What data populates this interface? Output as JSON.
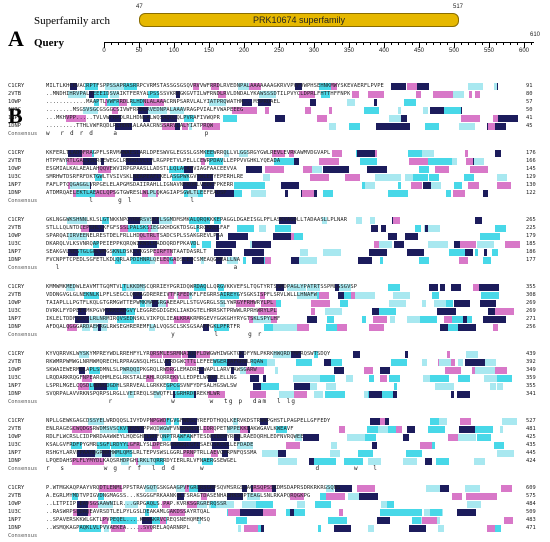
{
  "panel_a": {
    "letter": "A",
    "arch_label": "Superfamily arch",
    "query_label": "Query",
    "domain": {
      "name": "PRK10674 superfamily",
      "start": "47",
      "end": "517"
    },
    "ruler_end_label": "610",
    "ruler_ticks": [
      "0",
      "50",
      "100",
      "150",
      "200",
      "250",
      "300",
      "350",
      "400",
      "450",
      "500",
      "550",
      "600"
    ]
  },
  "panel_b": {
    "letter": "B",
    "consensus_label": "Consensus",
    "sequence_names": [
      "C1CRY",
      "2VTB",
      "1OWP",
      "1U3C",
      "1NP7",
      "1DNP"
    ],
    "colors": {
      "dark": "#1c1c5c",
      "cyan": "#48d8e8",
      "pink": "#d878c8",
      "light": "#a8e8f0"
    },
    "blocks": [
      {
        "rows": [
          {
            "name": "C1CRY",
            "seq": "MILTLKHCRVACRPTFSPPSSAPRASRRPCVRMSTASSGSGSQVRVVWFRRDLRVEDNPALAAAAAAAGKRVVPVFVWPHSEHNKMWYSKEVAERFLPVPE",
            "end": "91"
          },
          {
            "name": "2VTB",
            "seq": "..MNDHIHRVPALTEEEIDSVAIKTFERYALPSSSSVKRKGKGVTILWFRNDLRVLDNDALYKAWSSSDTILPVYCLDPRLFHTTHFFNPK",
            "end": "80"
          },
          {
            "name": "1OWP",
            "seq": "............MAAPTLVWFRRDLRLHDNLALAAACRNPSARVLALYIATPRQWATHN...MSPRQAEL",
            "end": "57"
          },
          {
            "name": "1U3C",
            "seq": "........MSGSVSGCGSGGCSIVWFRRDLRVEDNPALAAAVRAGPVIALFVWAPEEEG",
            "end": "50"
          },
          {
            "name": "1NP7",
            "seq": "...MKHVPP.....TVLVWFRRDLRLHDNLALWQSAQQLQLPVRAFIVWQPR",
            "end": "41"
          },
          {
            "name": "1DNP",
            "seq": ".........TTHLVWFRQDLRLHDNLALAAACRNSSARVLALYIATPRQW",
            "end": "45"
          }
        ],
        "consensus": "w  r d r d    a                  p"
      },
      {
        "rows": [
          {
            "name": "C1CRY",
            "seq": "KKFERLTLADQFRAGPFLSRVMAWAESLARLDPESWVGLEGSSLGSMKEEWRRQLLVLGGSRGYGWLREVLEVRKAWMVDGVAPL",
            "end": "176"
          },
          {
            "name": "2VTB",
            "seq": "HTPFNYRTLGALSSLRQEWEGCLRNGGLVLLVLRGPPETVLPELLCEWRPDAVLLEPPVVGHKLYQEADA",
            "end": "166"
          },
          {
            "name": "1OWP",
            "seq": "ESGMIALKALAEALAHQQVEWVIRPGPAASLLADSTLLQLACAQVIAGFAACEEVVA",
            "end": "145"
          },
          {
            "name": "1U3C",
            "seq": "SMRHWTDSRFRFDKTGWLTVSIVSKLNEAPEAFLKELASGPWKGVTWLEEYEPERHLRE",
            "end": "129"
          },
          {
            "name": "1NP7",
            "seq": "FAFLPTCQGAGGLVRPGELELAPGMSDAIIRAHLLIGNAVNFKQRLVEDKFPKERR",
            "end": "130"
          },
          {
            "name": "1DNP",
            "seq": "ATDMRQAELEKTLAEACLQPSGTGWRESLWLPLQKAGIAPSGWLTLEEFEADSP",
            "end": "122"
          }
        ],
        "consensus": "         l     g l            l"
      },
      {
        "rows": [
          {
            "name": "C1CRY",
            "seq": "GKLNGGWKSHNNLKLSLGTNKKNPGYRWRSVSKFLSGMDMSMKALQRQKKKEPAGGLDGAEISGLPFLASKVAGQLLTADAASLLPLNAR",
            "end": "265"
          },
          {
            "name": "2VTB",
            "seq": "STLLLQLNTDCEPGHLLKFGFSSSLPALSKSIEGGKHDGKTDSGLRRGKKLLFAF",
            "end": "225"
          },
          {
            "name": "1OWP",
            "seq": "SPARQAIIRVEENELRESTDELFRLLHDQLTRLTSADCSPLSSAKGREVLPSA",
            "end": "179"
          },
          {
            "name": "1U3C",
            "seq": "DKARQLVLKSVNRQAPPEIEPPKQRQWIRWSLRADDQRDFPKAVDL",
            "end": "185"
          },
          {
            "name": "1NP7",
            "seq": "SEAKGVLNESTGLGRLWHGSKNLDSKLVKGSPEIRFTNTAATDASRLT",
            "end": "186"
          },
          {
            "name": "1DNP",
            "seq": "FVCNPFTCPEDLSGFETLKDLQRLAPDIHNRLQELEQGADSLEQCSMEAQGSMALLNA",
            "end": "177"
          }
        ],
        "consensus": "  l                                    a"
      },
      {
        "rows": [
          {
            "name": "C1CRY",
            "seq": "KMMWMKMEDWLEAVMTTGQMTVLTLKKDMSCQRRIEYPGRIDQWRDAQLLQRGVKKVEFSLTQGTYRTSSMDPAGLYPATRTSSPMLGSGVSP",
            "end": "355"
          },
          {
            "name": "2VTB",
            "seq": "VDDNGVGLGLNEKNLKLPFLSEGCLQKRAGDREREIVTFRFEDKFLFEGRRSAIREYGYSGKSISPFLSRVLWLLLHNAFW",
            "end": "308"
          },
          {
            "name": "1OWP",
            "seq": "TAIAPLLLPGTFLKQLGTGRMGWTTEPWMKMAFSRGAEEAPLLSTGVGRGLSSLYWRGYFRHWRYLPL",
            "end": "269"
          },
          {
            "name": "1U3C",
            "seq": "DVRKLFYDPEEGMKPGVKGRKEADGVYLEGGREGDIGEKLIAKDGTELHRRSKTPRWWLRPRHWRYLPL",
            "end": "269"
          },
          {
            "name": "1NP7",
            "seq": "IKLELTDDFSDVSLRLNRMIRQVSEDNSKLVIKPQLIEALKRAKRMRGEVYGGKGHYRYGTSKLSPYLHF",
            "end": "271"
          },
          {
            "name": "1DNP",
            "seq": "AFDQALQGGGARDAEKRGLRWSEGHREREMFLALVQGSCLSKSGSAAFPGKLPFRTFR",
            "end": "256"
          }
        ],
        "consensus": "                          y        l      g r"
      },
      {
        "rows": [
          {
            "name": "C1CRY",
            "seq": "KYVQRRVKLWYSKYMPREYWDLRREHFYLYRQRSMLESRMNAIQQFLDWGWHIWGKTGKDFYNLPKRKHWQRDTMFRQSWTSDQY",
            "end": "439"
          },
          {
            "name": "2VTB",
            "seq": "RKWMRPWMWGLNRMWMQRECHLRPRAGNSQLHSLLVERDGWCTTLLEFEEWGERIAFGRWLRQAW",
            "end": "392"
          },
          {
            "name": "1OWP",
            "seq": "SKWAIEWERMQLAPLSDMNLSLPWRQQIPKGRQLRWDRGLEMADRELWAPLLARVTAWSGARW",
            "end": "349"
          },
          {
            "name": "1U3C",
            "seq": "LRQDARKRQGFNPEARQHMLEGLRKSTALEAHLRQRREKVLLEDPELWRDFLELLNG",
            "end": "359"
          },
          {
            "name": "1NP7",
            "seq": "LSPRLMGELCQSDLQDNGDGDHLSRRVEALLGRKKEGPCGSVNFYDFSALHGSWLSW",
            "end": "355"
          },
          {
            "name": "1DNP",
            "seq": "SVQRPALAVVRKNSPQRPSLRGLLVEIREQLSEWQTFLLGRHRDLREKHLWR",
            "end": "341"
          }
        ],
        "consensus": "             r            w       w  tg p  dam  l lg"
      },
      {
        "rows": [
          {
            "name": "C1CRY",
            "seq": "NPLLGEWKGAGCDSSYELWRDQQSLIVYDVPNPGWDFGVGFWDSLYREFDTHQQLKERVKDSTRWKPGHSTLPAGPELLGFFEDY",
            "end": "527"
          },
          {
            "name": "2VTB",
            "seq": "ENLRAGEGCWQDGSRWDMSVSCKVTEVNTPPWQDWGWFVNGRWNSELIDRQPETNPPEKKDAKWGAVLKWEAVF",
            "end": "481"
          },
          {
            "name": "1OWP",
            "seq": "RDLFLWCRSLCIDPWRDAAWWEYLHQEGHELWHFQNPTRAWFAWFTESDKIDERYRHQLRAEDQRHLEDFNVRQWEE",
            "end": "425"
          },
          {
            "name": "1U3C",
            "seq": "KSALGVFRDFPYGMRLSGFLRDYYLGFRLYSLDPERGGRHWQLGFLSAEGSKCKLLEFDADE",
            "end": "435"
          },
          {
            "name": "1NP7",
            "seq": "RSHGYLARVFPAAHQGRWRHWMLQMSLRLTEPVSWSLGGRLPRNPTRLLAEVGPRPNFQSSMA",
            "end": "445"
          },
          {
            "name": "1DNP",
            "seq": "LPQEDAHSPLFLYMYDLKAQSRHDPGHLRKLTQRRRDYIERLRLVFNAERGSEWGEL",
            "end": "424"
          }
        ],
        "consensus": "r  s        w g  r f  l d d     w                       d       w   l"
      },
      {
        "rows": [
          {
            "name": "C1CRY",
            "seq": "P.WTMGKAQPAAYVRQDTLENMLPPSTRAVGQTGSKGAAGPVFGRGRSGRPSQVMSRGSGAGRSQPSSKDMSDAPRSDRKRKRGSQNS",
            "end": "609"
          },
          {
            "name": "2VTB",
            "seq": "A.EGRLMYMDTVPIGVDNGMAGSS...KSGGGFRKAANKQLTSRAGTDASENHAGHKSQPTEAGLSNLRKAPQRQGKPG",
            "end": "575"
          },
          {
            "name": "1OWP",
            "seq": "..LITPIIP.EAVSGSAAWNILR...GRPGAQLS.PAP.KVRKSGRGRERQSSR",
            "end": "484"
          },
          {
            "name": "1U3C",
            "seq": "..RASWRPSLDAQEAVRSDTLELPYLGSLDEAKAMLGAKDSSAYRTQAL",
            "end": "509"
          },
          {
            "name": "1NP7",
            "seq": "..SPAVERSKKWLGKTLPVPEQEL....KEGGKRVCREQSNEHQMEMSQ",
            "end": "483"
          },
          {
            "name": "1DNP",
            "seq": "..WSMQKAGPAQKLVLPVVAEKEA.....SVQRELAQARNRPL",
            "end": "471"
          }
        ],
        "consensus": ""
      }
    ]
  }
}
